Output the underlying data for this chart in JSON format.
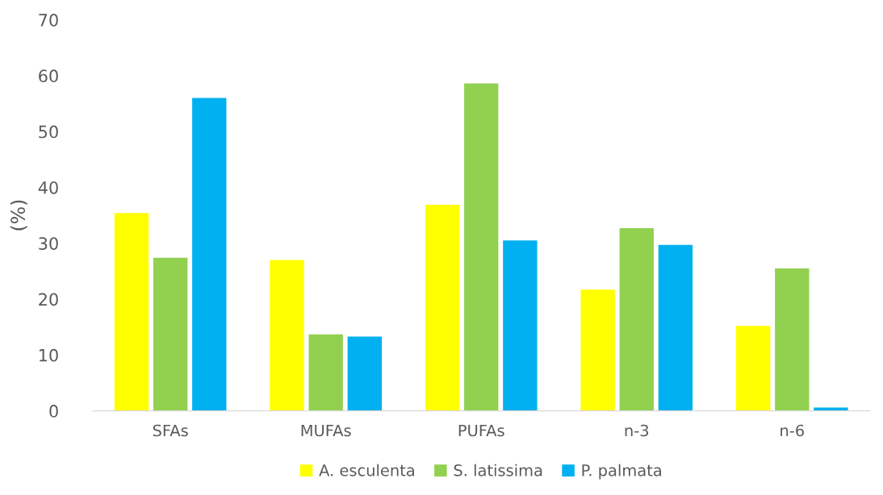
{
  "chart_data": {
    "type": "bar",
    "ylabel": "(%)",
    "categories": [
      "SFAs",
      "MUFAs",
      "PUFAs",
      "n-3",
      "n-6"
    ],
    "series": [
      {
        "name": "A. esculenta",
        "color": "#ffff00",
        "values": [
          35.4,
          27.0,
          36.9,
          21.7,
          15.2
        ]
      },
      {
        "name": "S. latissima",
        "color": "#92d050",
        "values": [
          27.4,
          13.7,
          58.6,
          32.7,
          25.5
        ]
      },
      {
        "name": "P. palmata",
        "color": "#00b0f0",
        "values": [
          56.0,
          13.3,
          30.5,
          29.7,
          0.6
        ]
      }
    ],
    "ylim": [
      0,
      70
    ],
    "yticks": [
      0,
      10,
      20,
      30,
      40,
      50,
      60,
      70
    ],
    "grid": false,
    "legend": "bottom"
  }
}
